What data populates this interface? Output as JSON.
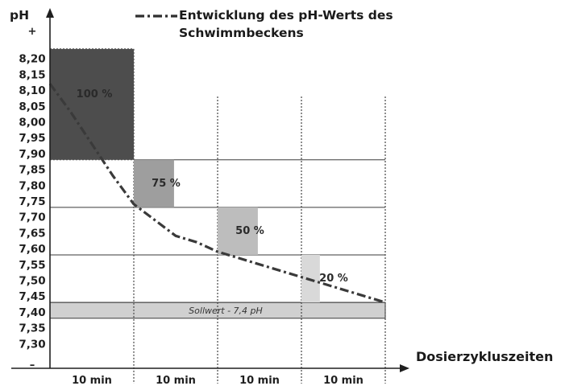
{
  "chart_data": {
    "type": "bar",
    "title": "Entwicklung des pH-Werts des Schwimmbeckens",
    "ylabel": "pH",
    "xlabel": "Dosierzykluszeiten",
    "ylim": [
      7.25,
      8.25
    ],
    "ytick_values": [
      8.2,
      8.15,
      8.1,
      8.05,
      8.0,
      7.95,
      7.9,
      7.85,
      7.8,
      7.75,
      7.7,
      7.65,
      7.6,
      7.55,
      7.5,
      7.45,
      7.4,
      7.35,
      7.3
    ],
    "ytick_labels": [
      "8,20",
      "8,15",
      "8,10",
      "8,05",
      "8,00",
      "7,95",
      "7,90",
      "7,85",
      "7,80",
      "7,75",
      "7,70",
      "7,65",
      "7,60",
      "7,55",
      "7,50",
      "7,45",
      "7,40",
      "7,35",
      "7,30"
    ],
    "y_plus": "+",
    "y_minus": "–",
    "categories": [
      "10 min",
      "10 min",
      "10 min",
      "10 min"
    ],
    "bars": [
      {
        "label": "100 %",
        "value": 100,
        "y_from": 7.88,
        "y_to": 8.23,
        "color": "#4d4d4d"
      },
      {
        "label": "75 %",
        "value": 75,
        "y_from": 7.73,
        "y_to": 7.88,
        "color": "#9e9e9e"
      },
      {
        "label": "50 %",
        "value": 50,
        "y_from": 7.58,
        "y_to": 7.73,
        "color": "#bdbdbd"
      },
      {
        "label": "20 %",
        "value": 20,
        "y_from": 7.43,
        "y_to": 7.58,
        "color": "#d9d9d9"
      }
    ],
    "band_lines": [
      7.88,
      7.73,
      7.58,
      7.43
    ],
    "setpoint": {
      "label": "Sollwert - 7,4 pH",
      "y_from": 7.38,
      "y_to": 7.43,
      "color": "#d0d0d0"
    },
    "series": [
      {
        "name": "Entwicklung des pH-Werts des Schwimmbeckens",
        "x": [
          0,
          2.5,
          5,
          7.5,
          10,
          12.5,
          15,
          17.5,
          20,
          22.5,
          25,
          27.5,
          30,
          32.5,
          35,
          37.5,
          40
        ],
        "y": [
          8.12,
          8.03,
          7.93,
          7.83,
          7.74,
          7.69,
          7.64,
          7.62,
          7.59,
          7.57,
          7.55,
          7.53,
          7.51,
          7.49,
          7.47,
          7.45,
          7.43
        ]
      }
    ],
    "legend_position": "top"
  }
}
